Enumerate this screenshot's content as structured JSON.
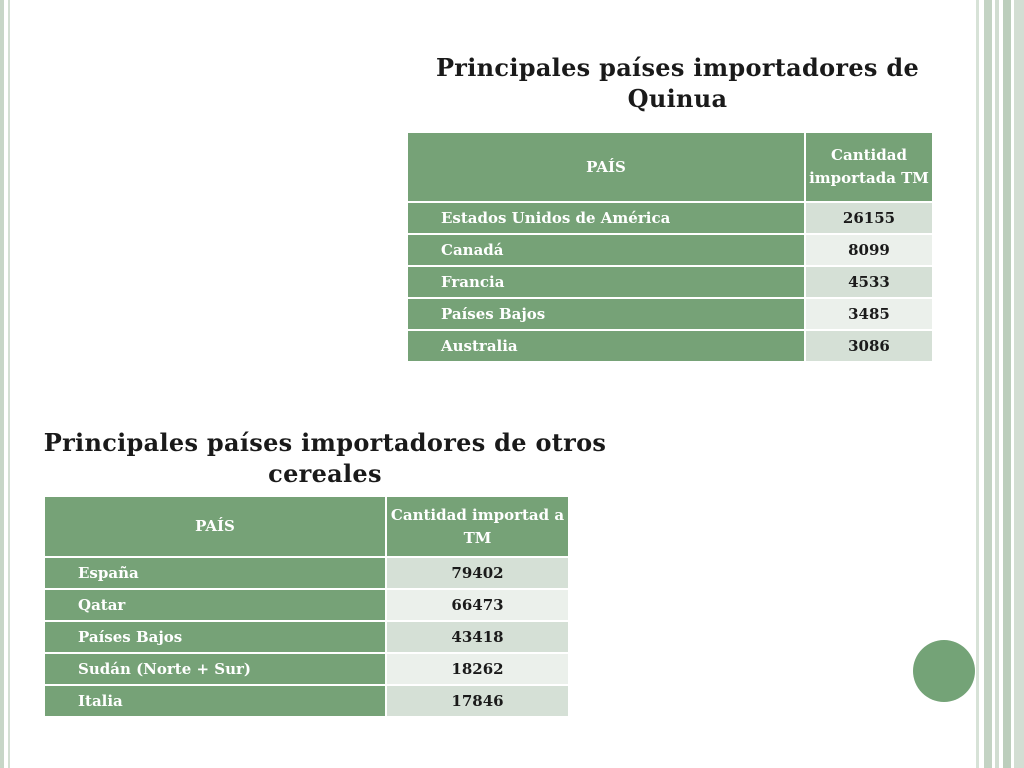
{
  "slide": {
    "colors": {
      "accent_green": "#76a277",
      "row_light": "#ebf0eb",
      "row_medium": "#d5e0d6",
      "circle": "#74a377"
    }
  },
  "quinua": {
    "title": "Principales países importadores de Quinua",
    "header_country": "PAÍS",
    "header_quantity": "Cantidad importada TM",
    "rows": [
      {
        "country": "Estados Unidos de América",
        "quantity": "26155"
      },
      {
        "country": "Canadá",
        "quantity": "8099"
      },
      {
        "country": "Francia",
        "quantity": "4533"
      },
      {
        "country": "Países Bajos",
        "quantity": "3485"
      },
      {
        "country": "Australia",
        "quantity": "3086"
      }
    ]
  },
  "cereales": {
    "title": "Principales países importadores de otros cereales",
    "header_country": "PAÍS",
    "header_quantity": "Cantidad importad a TM",
    "rows": [
      {
        "country": "España",
        "quantity": "79402"
      },
      {
        "country": "Qatar",
        "quantity": "66473"
      },
      {
        "country": "Países Bajos",
        "quantity": "43418"
      },
      {
        "country": "Sudán (Norte + Sur)",
        "quantity": "18262"
      },
      {
        "country": "Italia",
        "quantity": "17846"
      }
    ]
  }
}
